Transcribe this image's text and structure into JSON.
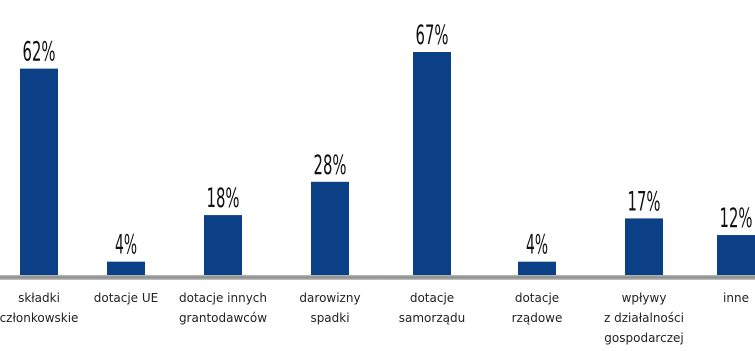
{
  "chart_data": {
    "type": "bar",
    "categories": [
      [
        "składki",
        "członkowskie"
      ],
      [
        "dotacje UE"
      ],
      [
        "dotacje innych",
        "grantodawców"
      ],
      [
        "darowizny",
        "spadki"
      ],
      [
        "dotacje",
        "samorządu"
      ],
      [
        "dotacje",
        "rządowe"
      ],
      [
        "wpływy",
        "z działalności",
        "gospodarczej"
      ],
      [
        "inne"
      ]
    ],
    "values": [
      62,
      4,
      18,
      28,
      67,
      4,
      17,
      12
    ],
    "value_labels": [
      "62%",
      "4%",
      "18%",
      "28%",
      "67%",
      "4%",
      "17%",
      "12%"
    ],
    "unit": "%",
    "ylim": [
      0,
      67
    ],
    "grid": false,
    "legend": "none",
    "colors": {
      "bar": "#0b3f86",
      "baseline": "#8a8a8a",
      "text": "#111111"
    }
  }
}
